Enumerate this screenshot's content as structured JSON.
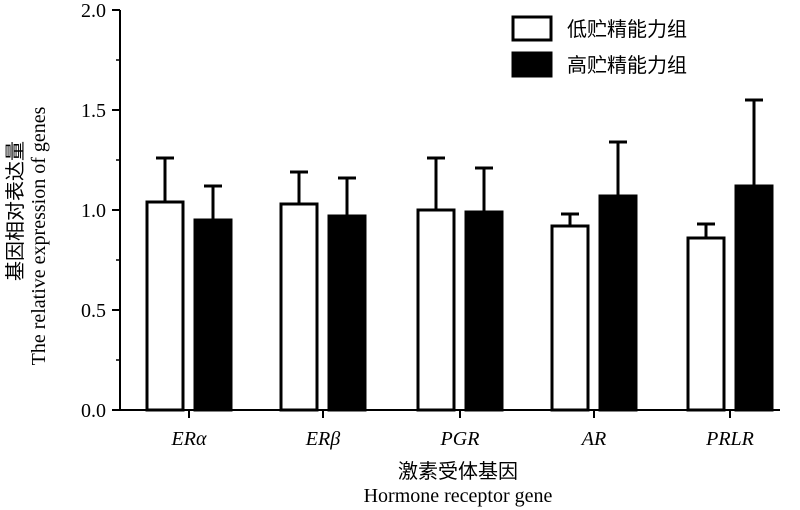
{
  "chart_data": {
    "type": "bar",
    "categories": [
      "ERα",
      "ERβ",
      "PGR",
      "AR",
      "PRLR"
    ],
    "series": [
      {
        "name": "低贮精能力组",
        "values": [
          1.04,
          1.03,
          1.0,
          0.92,
          0.86
        ],
        "errors": [
          0.22,
          0.16,
          0.26,
          0.06,
          0.07
        ],
        "color": "#ffffff"
      },
      {
        "name": "高贮精能力组",
        "values": [
          0.95,
          0.97,
          0.99,
          1.07,
          1.12
        ],
        "errors": [
          0.17,
          0.19,
          0.22,
          0.27,
          0.43
        ],
        "color": "#000000"
      }
    ],
    "yticks": [
      "0.0",
      "0.5",
      "1.0",
      "1.5",
      "2.0"
    ],
    "ylim": [
      0,
      2.0
    ],
    "ylabel_cn": "基因相对表达量",
    "ylabel_en": "The relative expression of genes",
    "xlabel_cn": "激素受体基因",
    "xlabel_en": "Hormone receptor gene",
    "legend_position": "top-right",
    "grid": false
  }
}
